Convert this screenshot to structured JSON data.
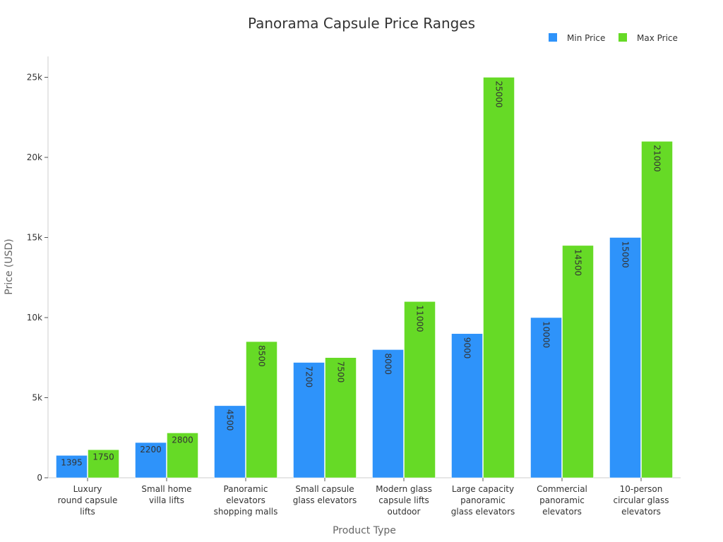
{
  "chart_data": {
    "type": "bar",
    "title": "Panorama Capsule Price Ranges",
    "xlabel": "Product Type",
    "ylabel": "Price (USD)",
    "ylim": [
      0,
      26300
    ],
    "yticks": [
      {
        "value": 0,
        "label": "0"
      },
      {
        "value": 5000,
        "label": "5k"
      },
      {
        "value": 10000,
        "label": "10k"
      },
      {
        "value": 15000,
        "label": "15k"
      },
      {
        "value": 20000,
        "label": "20k"
      },
      {
        "value": 25000,
        "label": "25k"
      }
    ],
    "legend_position": "top-right",
    "grid": false,
    "categories": [
      [
        "Luxury",
        "round capsule",
        "lifts"
      ],
      [
        "Small home",
        "villa lifts"
      ],
      [
        "Panoramic",
        "elevators",
        "shopping malls"
      ],
      [
        "Small capsule",
        "glass elevators"
      ],
      [
        "Modern glass",
        "capsule lifts",
        "outdoor"
      ],
      [
        "Large capacity",
        "panoramic",
        "glass elevators"
      ],
      [
        "Commercial",
        "panoramic",
        "elevators"
      ],
      [
        "10-person",
        "circular glass",
        "elevators"
      ]
    ],
    "series": [
      {
        "name": "Min Price",
        "color": "#2e93fa",
        "values": [
          1395,
          2200,
          4500,
          7200,
          8000,
          9000,
          10000,
          15000
        ]
      },
      {
        "name": "Max Price",
        "color": "#66da26",
        "values": [
          1750,
          2800,
          8500,
          7500,
          11000,
          25000,
          14500,
          21000
        ]
      }
    ]
  }
}
